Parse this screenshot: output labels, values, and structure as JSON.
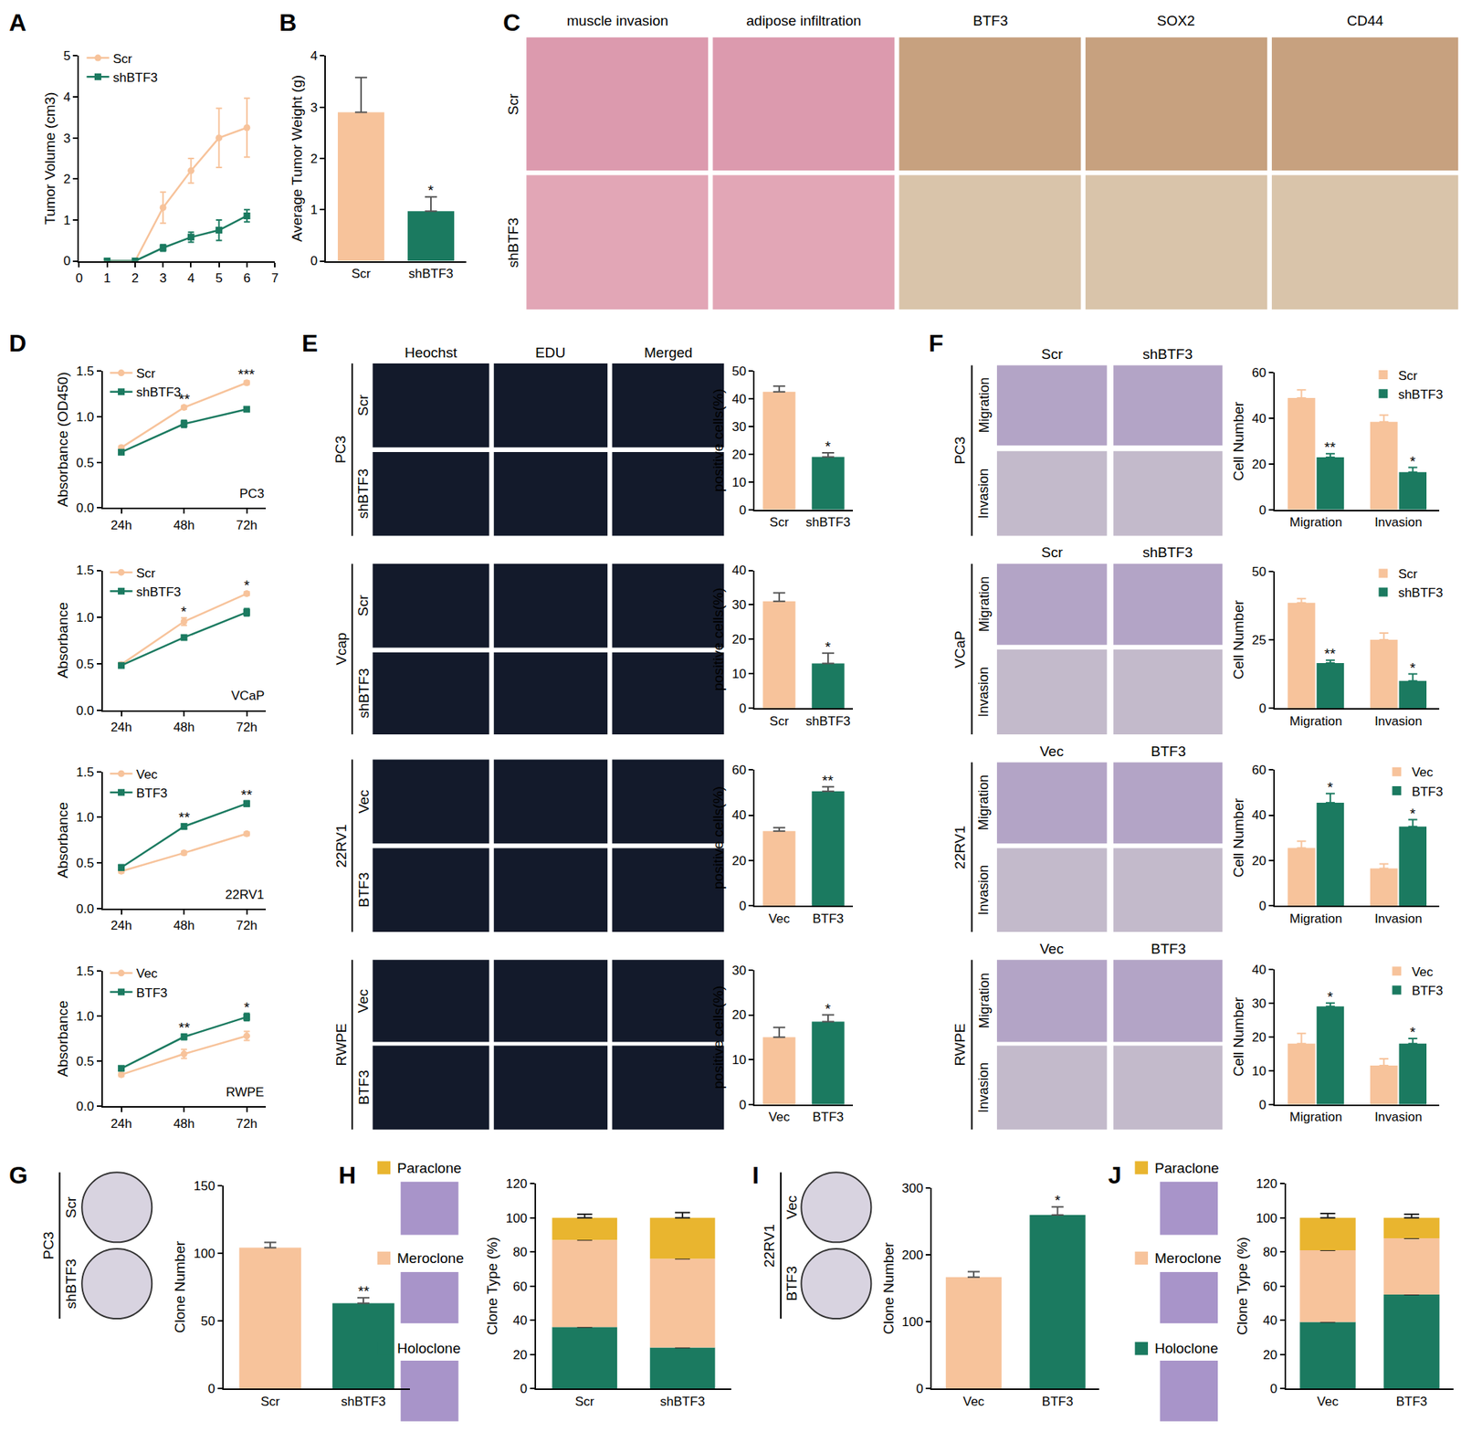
{
  "panel_letters": [
    "A",
    "B",
    "C",
    "D",
    "E",
    "F",
    "G",
    "H",
    "I",
    "J"
  ],
  "image_panels": {
    "C": {
      "columns": [
        "muscle invasion",
        "adipose infiltration",
        "BTF3",
        "SOX2",
        "CD44"
      ],
      "rows": [
        "Scr",
        "shBTF3"
      ]
    },
    "E": {
      "columns": [
        "Heochst",
        "EDU",
        "Merged"
      ],
      "groups": [
        {
          "cell_line": "PC3",
          "rows": [
            "Scr",
            "shBTF3"
          ]
        },
        {
          "cell_line": "Vcap",
          "rows": [
            "Scr",
            "shBTF3"
          ]
        },
        {
          "cell_line": "22RV1",
          "rows": [
            "Vec",
            "BTF3"
          ]
        },
        {
          "cell_line": "RWPE",
          "rows": [
            "Vec",
            "BTF3"
          ]
        }
      ]
    },
    "F": {
      "groups": [
        {
          "cell_line": "PC3",
          "columns": [
            "Scr",
            "shBTF3"
          ],
          "rows": [
            "Migration",
            "Invasion"
          ]
        },
        {
          "cell_line": "VCaP",
          "columns": [
            "Scr",
            "shBTF3"
          ],
          "rows": [
            "Migration",
            "Invasion"
          ]
        },
        {
          "cell_line": "22RV1",
          "columns": [
            "Vec",
            "BTF3"
          ],
          "rows": [
            "Migration",
            "Invasion"
          ]
        },
        {
          "cell_line": "RWPE",
          "columns": [
            "Vec",
            "BTF3"
          ],
          "rows": [
            "Migration",
            "Invasion"
          ]
        }
      ]
    },
    "G": {
      "cell_line": "PC3",
      "rows": [
        "Scr",
        "shBTF3"
      ]
    },
    "I": {
      "cell_line": "22RV1",
      "rows": [
        "Vec",
        "BTF3"
      ]
    }
  },
  "chart_data": [
    {
      "type": "line",
      "x": [
        1,
        2,
        3,
        4,
        5,
        6
      ],
      "xlim": [
        0,
        7
      ],
      "xticks": [
        0,
        1,
        2,
        3,
        4,
        5,
        6,
        7
      ],
      "ylim": [
        0,
        5
      ],
      "yticks": [
        0,
        1,
        2,
        3,
        4,
        5
      ],
      "y_label": "Tumor Volume (cm3)",
      "legend": "upper left",
      "series": [
        {
          "name": "Scr",
          "color": "#f7c39b",
          "marker": "circle",
          "values": [
            0,
            0,
            1.3,
            2.2,
            3.0,
            3.25
          ],
          "errors": [
            0,
            0,
            0.38,
            0.3,
            0.72,
            0.72
          ]
        },
        {
          "name": "shBTF3",
          "color": "#1b7a60",
          "marker": "square",
          "values": [
            0,
            0,
            0.32,
            0.58,
            0.75,
            1.1
          ],
          "errors": [
            0,
            0,
            0.08,
            0.12,
            0.25,
            0.15
          ]
        }
      ]
    },
    {
      "type": "bar",
      "categories": [
        "Scr",
        "shBTF3"
      ],
      "values": [
        2.9,
        0.97
      ],
      "errors": [
        0.68,
        0.28
      ],
      "colors": [
        "#f7c39b",
        "#1b7a60"
      ],
      "significance": [
        null,
        "*"
      ],
      "ylim": [
        0,
        4
      ],
      "yticks": [
        0,
        1,
        2,
        3,
        4
      ],
      "y_label": "Average Tumor Weight (g)"
    },
    {
      "type": "line",
      "categories": [
        "24h",
        "48h",
        "72h"
      ],
      "ylim": [
        0,
        1.5
      ],
      "yticks": [
        {
          "value": 0,
          "label": "0.0"
        },
        {
          "value": 0.5,
          "label": "0.5"
        },
        {
          "value": 1,
          "label": "1.0"
        },
        {
          "value": 1.5,
          "label": "1.5"
        }
      ],
      "y_label": "Absorbance (OD450)",
      "legend": "upper left",
      "annotations": [
        "PC3"
      ],
      "significance": [
        null,
        "**",
        "***"
      ],
      "series": [
        {
          "name": "Scr",
          "color": "#f7c39b",
          "marker": "circle",
          "values": [
            0.66,
            1.1,
            1.37
          ],
          "errors": [
            0.02,
            0.02,
            0.02
          ]
        },
        {
          "name": "shBTF3",
          "color": "#1b7a60",
          "marker": "square",
          "values": [
            0.61,
            0.92,
            1.08
          ],
          "errors": [
            0.02,
            0.04,
            0.02
          ]
        }
      ]
    },
    {
      "type": "line",
      "categories": [
        "24h",
        "48h",
        "72h"
      ],
      "ylim": [
        0,
        1.5
      ],
      "yticks": [
        {
          "value": 0,
          "label": "0.0"
        },
        {
          "value": 0.5,
          "label": "0.5"
        },
        {
          "value": 1,
          "label": "1.0"
        },
        {
          "value": 1.5,
          "label": "1.5"
        }
      ],
      "y_label": "Absorbance",
      "legend": "upper left",
      "annotations": [
        "VCaP"
      ],
      "significance": [
        null,
        "*",
        "*"
      ],
      "series": [
        {
          "name": "Scr",
          "color": "#f7c39b",
          "marker": "circle",
          "values": [
            0.49,
            0.95,
            1.25
          ],
          "errors": [
            0.02,
            0.04,
            0.02
          ]
        },
        {
          "name": "shBTF3",
          "color": "#1b7a60",
          "marker": "square",
          "values": [
            0.48,
            0.78,
            1.05
          ],
          "errors": [
            0.02,
            0.02,
            0.04
          ]
        }
      ]
    },
    {
      "type": "line",
      "categories": [
        "24h",
        "48h",
        "72h"
      ],
      "ylim": [
        0,
        1.5
      ],
      "yticks": [
        {
          "value": 0,
          "label": "0.0"
        },
        {
          "value": 0.5,
          "label": "0.5"
        },
        {
          "value": 1,
          "label": "1.0"
        },
        {
          "value": 1.5,
          "label": "1.5"
        }
      ],
      "y_label": "Absorbance",
      "legend": "upper left",
      "annotations": [
        "22RV1"
      ],
      "significance": [
        null,
        "**",
        "**"
      ],
      "series": [
        {
          "name": "Vec",
          "color": "#f7c39b",
          "marker": "circle",
          "values": [
            0.41,
            0.61,
            0.82
          ],
          "errors": [
            0.02,
            0.02,
            0.02
          ]
        },
        {
          "name": "BTF3",
          "color": "#1b7a60",
          "marker": "square",
          "values": [
            0.45,
            0.9,
            1.15
          ],
          "errors": [
            0.03,
            0.03,
            0.03
          ]
        }
      ]
    },
    {
      "type": "line",
      "categories": [
        "24h",
        "48h",
        "72h"
      ],
      "ylim": [
        0,
        1.5
      ],
      "yticks": [
        {
          "value": 0,
          "label": "0.0"
        },
        {
          "value": 0.5,
          "label": "0.5"
        },
        {
          "value": 1,
          "label": "1.0"
        },
        {
          "value": 1.5,
          "label": "1.5"
        }
      ],
      "y_label": "Absorbance",
      "legend": "upper left",
      "annotations": [
        "RWPE"
      ],
      "significance": [
        null,
        "**",
        "*"
      ],
      "series": [
        {
          "name": "Vec",
          "color": "#f7c39b",
          "marker": "circle",
          "values": [
            0.35,
            0.58,
            0.78
          ],
          "errors": [
            0.02,
            0.05,
            0.05
          ]
        },
        {
          "name": "BTF3",
          "color": "#1b7a60",
          "marker": "square",
          "values": [
            0.42,
            0.77,
            0.99
          ],
          "errors": [
            0.02,
            0.03,
            0.04
          ]
        }
      ]
    },
    {
      "type": "bar",
      "categories": [
        "Scr",
        "shBTF3"
      ],
      "values": [
        42.5,
        19
      ],
      "errors": [
        2,
        1.5
      ],
      "colors": [
        "#f7c39b",
        "#1b7a60"
      ],
      "significance": [
        null,
        "*"
      ],
      "ylim": [
        0,
        50
      ],
      "yticks": [
        0,
        10,
        20,
        30,
        40,
        50
      ],
      "y_label": "positive cells(%)"
    },
    {
      "type": "bar",
      "categories": [
        "Scr",
        "shBTF3"
      ],
      "values": [
        31,
        13
      ],
      "errors": [
        2.5,
        3
      ],
      "colors": [
        "#f7c39b",
        "#1b7a60"
      ],
      "significance": [
        null,
        "*"
      ],
      "ylim": [
        0,
        40
      ],
      "yticks": [
        0,
        10,
        20,
        30,
        40
      ],
      "y_label": "positive cells(%)"
    },
    {
      "type": "bar",
      "categories": [
        "Vec",
        "BTF3"
      ],
      "values": [
        33,
        50.5
      ],
      "errors": [
        1.5,
        2
      ],
      "colors": [
        "#f7c39b",
        "#1b7a60"
      ],
      "significance": [
        null,
        "**"
      ],
      "ylim": [
        0,
        60
      ],
      "yticks": [
        0,
        20,
        40,
        60
      ],
      "y_label": "positive cells(%)"
    },
    {
      "type": "bar",
      "categories": [
        "Vec",
        "BTF3"
      ],
      "values": [
        15,
        18.5
      ],
      "errors": [
        2.2,
        1.5
      ],
      "colors": [
        "#f7c39b",
        "#1b7a60"
      ],
      "significance": [
        null,
        "*"
      ],
      "ylim": [
        0,
        30
      ],
      "yticks": [
        0,
        10,
        20,
        30
      ],
      "y_label": "positive cells(%)"
    },
    {
      "type": "bar",
      "categories": [
        "Migration",
        "Invasion"
      ],
      "ylim": [
        0,
        60
      ],
      "yticks": [
        0,
        20,
        40,
        60
      ],
      "y_label": "Cell Number",
      "legend": "upper right",
      "series": [
        {
          "name": "Scr",
          "color": "#f7c39b",
          "values": [
            49,
            38.5
          ],
          "errors": [
            3.5,
            3
          ]
        },
        {
          "name": "shBTF3",
          "color": "#1b7a60",
          "values": [
            23,
            16.5
          ],
          "errors": [
            1.5,
            2
          ],
          "significance": [
            "**",
            "*"
          ]
        }
      ]
    },
    {
      "type": "bar",
      "categories": [
        "Migration",
        "Invasion"
      ],
      "ylim": [
        0,
        50
      ],
      "yticks": [
        0,
        25,
        50
      ],
      "y_label": "Cell Number",
      "legend": "upper right",
      "series": [
        {
          "name": "Scr",
          "color": "#f7c39b",
          "values": [
            38.5,
            25
          ],
          "errors": [
            1.5,
            2.5
          ]
        },
        {
          "name": "shBTF3",
          "color": "#1b7a60",
          "values": [
            16.5,
            10
          ],
          "errors": [
            1,
            2.5
          ],
          "significance": [
            "**",
            "*"
          ]
        }
      ]
    },
    {
      "type": "bar",
      "categories": [
        "Migration",
        "Invasion"
      ],
      "ylim": [
        0,
        60
      ],
      "yticks": [
        0,
        20,
        40,
        60
      ],
      "y_label": "Cell Number",
      "legend": "upper right",
      "series": [
        {
          "name": "Vec",
          "color": "#f7c39b",
          "values": [
            25.5,
            16.5
          ],
          "errors": [
            3,
            2
          ]
        },
        {
          "name": "BTF3",
          "color": "#1b7a60",
          "values": [
            45.5,
            35
          ],
          "errors": [
            4,
            3
          ],
          "significance": [
            "*",
            "*"
          ]
        }
      ]
    },
    {
      "type": "bar",
      "categories": [
        "Migration",
        "Invasion"
      ],
      "ylim": [
        0,
        40
      ],
      "yticks": [
        0,
        10,
        20,
        30,
        40
      ],
      "y_label": "Cell Number",
      "legend": "upper right",
      "series": [
        {
          "name": "Vec",
          "color": "#f7c39b",
          "values": [
            18,
            11.5
          ],
          "errors": [
            3,
            2
          ]
        },
        {
          "name": "BTF3",
          "color": "#1b7a60",
          "values": [
            29,
            18
          ],
          "errors": [
            1,
            1.5
          ],
          "significance": [
            "*",
            "*"
          ]
        }
      ]
    },
    {
      "type": "bar",
      "categories": [
        "Scr",
        "shBTF3"
      ],
      "values": [
        104,
        63
      ],
      "errors": [
        4,
        4
      ],
      "colors": [
        "#f7c39b",
        "#1b7a60"
      ],
      "significance": [
        null,
        "**"
      ],
      "ylim": [
        0,
        150
      ],
      "yticks": [
        0,
        50,
        100,
        150
      ],
      "y_label": "Clone Number"
    },
    {
      "type": "bar",
      "stacked": true,
      "categories": [
        "Scr",
        "shBTF3"
      ],
      "ylim": [
        0,
        120
      ],
      "yticks": [
        0,
        20,
        40,
        60,
        80,
        100,
        120
      ],
      "y_label": "Clone Type (%)",
      "series": [
        {
          "name": "Holoclone",
          "color": "#1b7a60",
          "values": [
            36,
            24
          ],
          "errors": [
            2.5,
            2
          ]
        },
        {
          "name": "Meroclone",
          "color": "#f7c39b",
          "values": [
            51,
            52
          ],
          "errors": [
            2,
            5
          ]
        },
        {
          "name": "Paraclone",
          "color": "#e9b52f",
          "values": [
            13,
            24
          ],
          "errors": [
            2,
            3
          ]
        }
      ]
    },
    {
      "type": "bar",
      "categories": [
        "Vec",
        "BTF3"
      ],
      "values": [
        167,
        260
      ],
      "errors": [
        8,
        12
      ],
      "colors": [
        "#f7c39b",
        "#1b7a60"
      ],
      "significance": [
        null,
        "*"
      ],
      "ylim": [
        0,
        300
      ],
      "yticks": [
        0,
        100,
        200,
        300
      ],
      "y_label": "Clone Number"
    },
    {
      "type": "bar",
      "stacked": true,
      "categories": [
        "Vec",
        "BTF3"
      ],
      "ylim": [
        0,
        120
      ],
      "yticks": [
        0,
        20,
        40,
        60,
        80,
        100,
        120
      ],
      "y_label": "Clone Type (%)",
      "series": [
        {
          "name": "Holoclone",
          "color": "#1b7a60",
          "values": [
            39,
            55
          ],
          "errors": [
            2.5,
            5
          ]
        },
        {
          "name": "Meroclone",
          "color": "#f7c39b",
          "values": [
            42,
            33
          ],
          "errors": [
            4,
            4
          ]
        },
        {
          "name": "Paraclone",
          "color": "#e9b52f",
          "values": [
            19,
            12
          ],
          "errors": [
            2.5,
            2
          ]
        }
      ]
    }
  ]
}
